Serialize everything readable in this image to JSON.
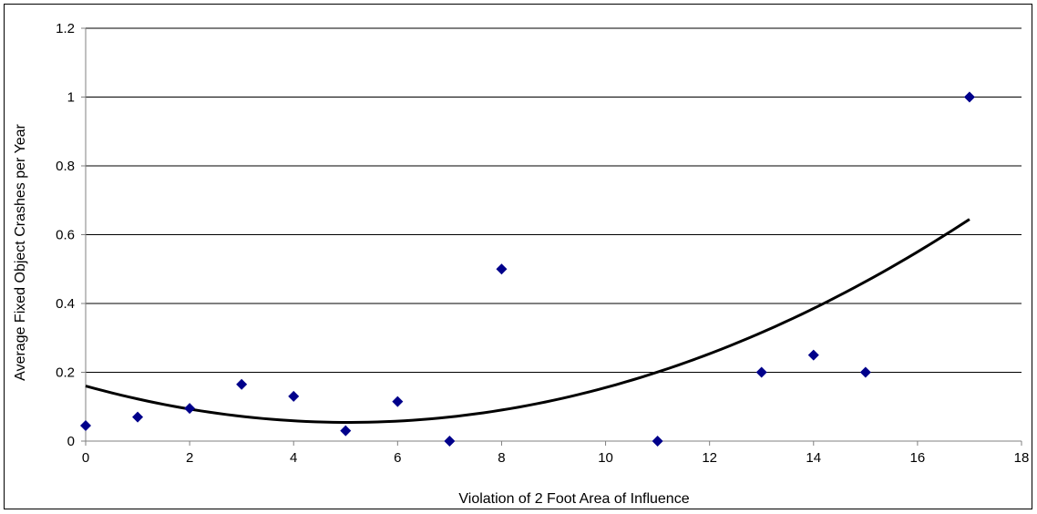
{
  "chart_data": {
    "type": "scatter",
    "xlabel": "Violation of 2 Foot Area of Influence",
    "ylabel": "Average Fixed Object Crashes per Year",
    "xlim": [
      0,
      18
    ],
    "ylim": [
      0,
      1.2
    ],
    "x_ticks": [
      0,
      2,
      4,
      6,
      8,
      10,
      12,
      14,
      16,
      18
    ],
    "y_ticks": [
      0,
      0.2,
      0.4,
      0.6,
      0.8,
      1.0,
      1.2
    ],
    "x_tick_labels": [
      "0",
      "2",
      "4",
      "6",
      "8",
      "10",
      "12",
      "14",
      "16",
      "18"
    ],
    "y_tick_labels": [
      "0",
      "0.2",
      "0.4",
      "0.6",
      "0.8",
      "1",
      "1.2"
    ],
    "grid": "horizontal",
    "series": [
      {
        "marker": "diamond",
        "color": "#00008B",
        "points": [
          {
            "x": 0,
            "y": 0.045
          },
          {
            "x": 1,
            "y": 0.07
          },
          {
            "x": 2,
            "y": 0.095
          },
          {
            "x": 3,
            "y": 0.165
          },
          {
            "x": 4,
            "y": 0.13
          },
          {
            "x": 5,
            "y": 0.03
          },
          {
            "x": 6,
            "y": 0.115
          },
          {
            "x": 7,
            "y": 0.0
          },
          {
            "x": 8,
            "y": 0.5
          },
          {
            "x": 11,
            "y": 0.0
          },
          {
            "x": 13,
            "y": 0.2
          },
          {
            "x": 14,
            "y": 0.25
          },
          {
            "x": 15,
            "y": 0.2
          },
          {
            "x": 17,
            "y": 1.0
          }
        ]
      }
    ],
    "trendline": {
      "type": "polynomial",
      "color": "#000000",
      "x_range": [
        0,
        17
      ],
      "points": [
        {
          "x": 0,
          "y": 0.16
        },
        {
          "x": 5,
          "y": 0.055
        },
        {
          "x": 11,
          "y": 0.2
        },
        {
          "x": 17,
          "y": 0.645
        }
      ]
    }
  }
}
